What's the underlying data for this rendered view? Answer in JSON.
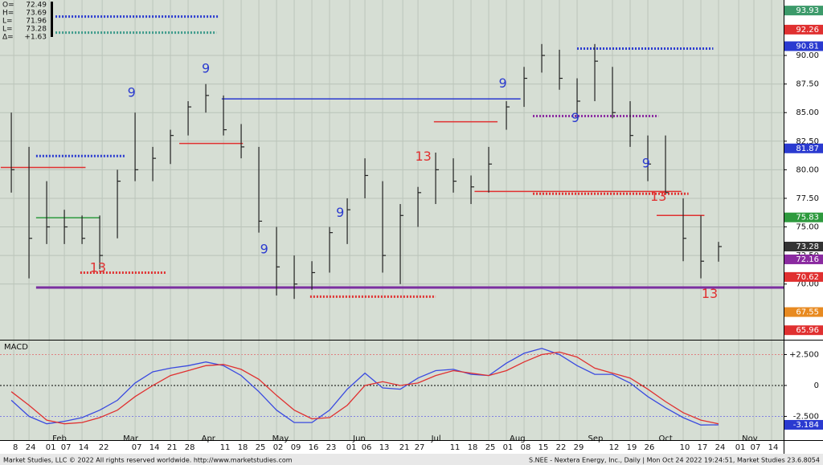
{
  "chart_data": [
    {
      "type": "ohlc",
      "readout": [
        {
          "label": "O=",
          "value": 72.49
        },
        {
          "label": "H=",
          "value": 73.69
        },
        {
          "label": "L=",
          "value": 71.96
        },
        {
          "label": "L=",
          "value": 73.28
        },
        {
          "label": "Δ=",
          "value": 1.63,
          "value_label": "+1.63"
        }
      ],
      "x": [
        -1,
        0,
        1,
        2,
        3,
        4,
        5,
        6,
        7,
        8,
        9,
        10,
        11,
        12,
        13,
        14,
        15,
        16,
        17,
        18,
        19,
        20,
        21,
        22,
        23,
        24,
        25,
        26,
        27,
        28,
        29,
        30,
        31,
        32,
        33,
        34,
        35,
        36,
        37,
        38,
        39
      ],
      "high": [
        85,
        82,
        79,
        76.5,
        76,
        76,
        80,
        85,
        82,
        83.5,
        86,
        87.5,
        86.5,
        84,
        82,
        75,
        72.5,
        72,
        75,
        77.5,
        81,
        79,
        77,
        78.5,
        81.5,
        81,
        79.5,
        82,
        86,
        89,
        91,
        90.5,
        88,
        91,
        89,
        86,
        83,
        83,
        77.5,
        76,
        73.69
      ],
      "low": [
        78,
        70.5,
        73.5,
        73.5,
        73.5,
        71.3,
        74,
        79,
        79,
        80.5,
        83,
        85,
        83,
        81,
        74.5,
        69,
        68.7,
        69.5,
        71,
        73.5,
        77.5,
        71,
        70,
        75,
        77,
        78,
        77,
        78,
        83.5,
        85.5,
        88.5,
        87,
        84.5,
        86,
        84.5,
        82,
        79,
        78,
        72,
        70.5,
        71.96
      ],
      "close": [
        80,
        74,
        75,
        75,
        74,
        72.5,
        79,
        80,
        81,
        83,
        85.5,
        86.5,
        83.5,
        82,
        75.5,
        71.5,
        70,
        71,
        74.5,
        76.5,
        79.5,
        72.5,
        76,
        78,
        80,
        79,
        78.5,
        80.5,
        85.5,
        88,
        90,
        88,
        86,
        89.5,
        85,
        83,
        80.5,
        78,
        74,
        72,
        73.28
      ],
      "color": "#222222",
      "xlim": [
        -1.64,
        42.68
      ],
      "ylim": [
        65.2,
        94.5
      ],
      "yticks": [
        {
          "value": 70,
          "label": "70.00"
        },
        {
          "value": 72.5,
          "label": "72.50"
        },
        {
          "value": 75,
          "label": "75.00"
        },
        {
          "value": 77.5,
          "label": "77.50"
        },
        {
          "value": 80,
          "label": "80.00"
        },
        {
          "value": 82.5,
          "label": "82.50"
        },
        {
          "value": 85,
          "label": "85.00"
        },
        {
          "value": 87.5,
          "label": "87.50"
        },
        {
          "value": 90,
          "label": "90.00"
        }
      ],
      "grid": true,
      "right_labels": [
        {
          "value": 93.93,
          "color": "#3c9a6a"
        },
        {
          "value": 92.26,
          "color": "#e03030"
        },
        {
          "value": 90.81,
          "color": "#2a3ad0"
        },
        {
          "value": 81.87,
          "color": "#2a3ad0"
        },
        {
          "value": 75.83,
          "color": "#2e9a3e"
        },
        {
          "value": 73.28,
          "color": "#333333"
        },
        {
          "value": 72.16,
          "color": "#8a2aa0"
        },
        {
          "value": 70.62,
          "color": "#e03030"
        },
        {
          "value": 67.55,
          "color": "#e88a20"
        },
        {
          "value": 65.96,
          "color": "#e03030"
        }
      ],
      "levels": [
        {
          "value": 69.7,
          "from": 0.4,
          "to": 42.68,
          "color": "#7b2fa0",
          "style": "thick"
        },
        {
          "value": 86.2,
          "from": 10.9,
          "to": 27.8,
          "color": "#2a3ad0",
          "style": "solid"
        },
        {
          "value": 78.1,
          "from": 25.2,
          "to": 36.9,
          "color": "#e03030",
          "style": "solid"
        },
        {
          "value": 80.2,
          "from": -1.6,
          "to": 3.2,
          "color": "#e03030",
          "style": "solid"
        },
        {
          "value": 82.3,
          "from": 8.5,
          "to": 12.1,
          "color": "#e03030",
          "style": "solid"
        },
        {
          "value": 84.2,
          "from": 22.9,
          "to": 26.5,
          "color": "#e03030",
          "style": "solid"
        },
        {
          "value": 76.0,
          "from": 35.5,
          "to": 38.2,
          "color": "#e03030",
          "style": "solid"
        },
        {
          "value": 75.8,
          "from": 0.4,
          "to": 4.0,
          "color": "#2e9a3e",
          "style": "solid"
        },
        {
          "value": 81.2,
          "from": 0.4,
          "to": 5.4,
          "color": "#2a3ad0",
          "style": "dotted"
        },
        {
          "value": 93.4,
          "from": 1.5,
          "to": 10.7,
          "color": "#2a3ad0",
          "style": "dotted"
        },
        {
          "value": 92.0,
          "from": 1.5,
          "to": 10.6,
          "color": "#3c9a8a",
          "style": "dotted"
        },
        {
          "value": 90.6,
          "from": 31,
          "to": 38.7,
          "color": "#2a3ad0",
          "style": "dotted"
        },
        {
          "value": 84.7,
          "from": 28.5,
          "to": 35.6,
          "color": "#8a2aa0",
          "style": "dotted"
        },
        {
          "value": 77.9,
          "from": 28.5,
          "to": 37.3,
          "color": "#e03030",
          "style": "dotted"
        },
        {
          "value": 68.9,
          "from": 15.9,
          "to": 23.0,
          "color": "#e03030",
          "style": "dotted"
        },
        {
          "value": 71.0,
          "from": 2.9,
          "to": 7.8,
          "color": "#e03030",
          "style": "dotted"
        }
      ],
      "annotations": [
        {
          "text": "9",
          "x": 5.8,
          "y": 86.7,
          "color": "#2a3ad0"
        },
        {
          "text": "9",
          "x": 10.0,
          "y": 88.8,
          "color": "#2a3ad0"
        },
        {
          "text": "13",
          "x": 3.9,
          "y": 71.4,
          "color": "#e03030"
        },
        {
          "text": "9",
          "x": 13.3,
          "y": 73.0,
          "color": "#2a3ad0"
        },
        {
          "text": "9",
          "x": 17.6,
          "y": 76.2,
          "color": "#2a3ad0"
        },
        {
          "text": "13",
          "x": 22.3,
          "y": 81.1,
          "color": "#e03030"
        },
        {
          "text": "9",
          "x": 26.8,
          "y": 87.5,
          "color": "#2a3ad0"
        },
        {
          "text": "9",
          "x": 30.9,
          "y": 84.5,
          "color": "#2a3ad0"
        },
        {
          "text": "9",
          "x": 34.9,
          "y": 80.5,
          "color": "#2a3ad0"
        },
        {
          "text": "13",
          "x": 35.6,
          "y": 77.6,
          "color": "#e03030"
        },
        {
          "text": "13",
          "x": 38.5,
          "y": 69.1,
          "color": "#e03030"
        }
      ]
    },
    {
      "type": "line",
      "title": "MACD",
      "x": [
        -1,
        0,
        1,
        2,
        3,
        4,
        5,
        6,
        7,
        8,
        9,
        10,
        11,
        12,
        13,
        14,
        15,
        16,
        17,
        18,
        19,
        20,
        21,
        22,
        23,
        24,
        25,
        26,
        27,
        28,
        29,
        30,
        31,
        32,
        33,
        34,
        35,
        36,
        37,
        38,
        39
      ],
      "series": [
        {
          "color": "#3a4ae0",
          "values": [
            -1.2,
            -2.5,
            -3.1,
            -2.9,
            -2.6,
            -2.0,
            -1.2,
            0.2,
            1.1,
            1.4,
            1.6,
            1.9,
            1.6,
            0.8,
            -0.5,
            -2.0,
            -3.0,
            -3.0,
            -2.0,
            -0.3,
            1.0,
            -0.2,
            -0.3,
            0.6,
            1.2,
            1.3,
            0.9,
            0.8,
            1.8,
            2.6,
            3.0,
            2.5,
            1.6,
            0.9,
            0.9,
            0.2,
            -0.9,
            -1.8,
            -2.6,
            -3.2,
            -3.184
          ]
        },
        {
          "color": "#e03030",
          "values": [
            -0.5,
            -1.6,
            -2.8,
            -3.1,
            -3.0,
            -2.6,
            -2.0,
            -0.9,
            0.0,
            0.8,
            1.2,
            1.6,
            1.7,
            1.3,
            0.5,
            -0.8,
            -2.0,
            -2.7,
            -2.6,
            -1.6,
            0.0,
            0.3,
            0.0,
            0.2,
            0.8,
            1.2,
            1.0,
            0.8,
            1.2,
            1.9,
            2.5,
            2.7,
            2.3,
            1.4,
            1.0,
            0.6,
            -0.3,
            -1.3,
            -2.2,
            -2.8,
            -3.1
          ]
        }
      ],
      "xlim": [
        -1.64,
        42.68
      ],
      "ylim": [
        -4.42,
        3.57
      ],
      "yticks": [
        {
          "value": 2.5,
          "label": "+2.500"
        },
        0,
        {
          "value": -2.5,
          "label": "-2.500"
        }
      ],
      "right_labels": [
        {
          "value": -3.184,
          "color": "#2a3ad0"
        }
      ],
      "xticks": [
        {
          "value": -0.86,
          "label": "8"
        },
        {
          "value": 0,
          "label": "24"
        },
        {
          "value": 1.14,
          "label": "01"
        },
        {
          "value": 2,
          "label": "07"
        },
        {
          "value": 3,
          "label": "14"
        },
        {
          "value": 4.14,
          "label": "22"
        },
        {
          "value": 6,
          "label": "07"
        },
        {
          "value": 7,
          "label": "14"
        },
        {
          "value": 8,
          "label": "21"
        },
        {
          "value": 9,
          "label": "28"
        },
        {
          "value": 11,
          "label": "11"
        },
        {
          "value": 12,
          "label": "18"
        },
        {
          "value": 13,
          "label": "25"
        },
        {
          "value": 14,
          "label": "02"
        },
        {
          "value": 15,
          "label": "09"
        },
        {
          "value": 16,
          "label": "16"
        },
        {
          "value": 17,
          "label": "23"
        },
        {
          "value": 18.14,
          "label": "01"
        },
        {
          "value": 19,
          "label": "06"
        },
        {
          "value": 20,
          "label": "13"
        },
        {
          "value": 21.14,
          "label": "21"
        },
        {
          "value": 22,
          "label": "27"
        },
        {
          "value": 24,
          "label": "11"
        },
        {
          "value": 25,
          "label": "18"
        },
        {
          "value": 26,
          "label": "25"
        },
        {
          "value": 27,
          "label": "01"
        },
        {
          "value": 28,
          "label": "08"
        },
        {
          "value": 29,
          "label": "15"
        },
        {
          "value": 30,
          "label": "22"
        },
        {
          "value": 31,
          "label": "29"
        },
        {
          "value": 33,
          "label": "12"
        },
        {
          "value": 34,
          "label": "19"
        },
        {
          "value": 35,
          "label": "26"
        },
        {
          "value": 37,
          "label": "10"
        },
        {
          "value": 38,
          "label": "17"
        },
        {
          "value": 39,
          "label": "24"
        },
        {
          "value": 40.14,
          "label": "01"
        },
        {
          "value": 41,
          "label": "07"
        },
        {
          "value": 42,
          "label": "14"
        }
      ],
      "month_ticks": [
        {
          "value": 1.14,
          "label": "Feb"
        },
        {
          "value": 5.14,
          "label": "Mar"
        },
        {
          "value": 9.57,
          "label": "Apr"
        },
        {
          "value": 13.57,
          "label": "May"
        },
        {
          "value": 18.14,
          "label": "Jun"
        },
        {
          "value": 22.57,
          "label": "Jul"
        },
        {
          "value": 27,
          "label": "Aug"
        },
        {
          "value": 31.43,
          "label": "Sep"
        },
        {
          "value": 35.43,
          "label": "Oct"
        },
        {
          "value": 40.14,
          "label": "Nov"
        }
      ]
    }
  ],
  "footer": {
    "left": "Market Studies, LLC © 2022 All rights reserved worldwide. http://www.marketstudies.com",
    "right": "S.NEE - Nextera Energy, Inc., Daily | Mon Oct 24 2022 19:24:51, Market Studies 23.6.8054"
  }
}
